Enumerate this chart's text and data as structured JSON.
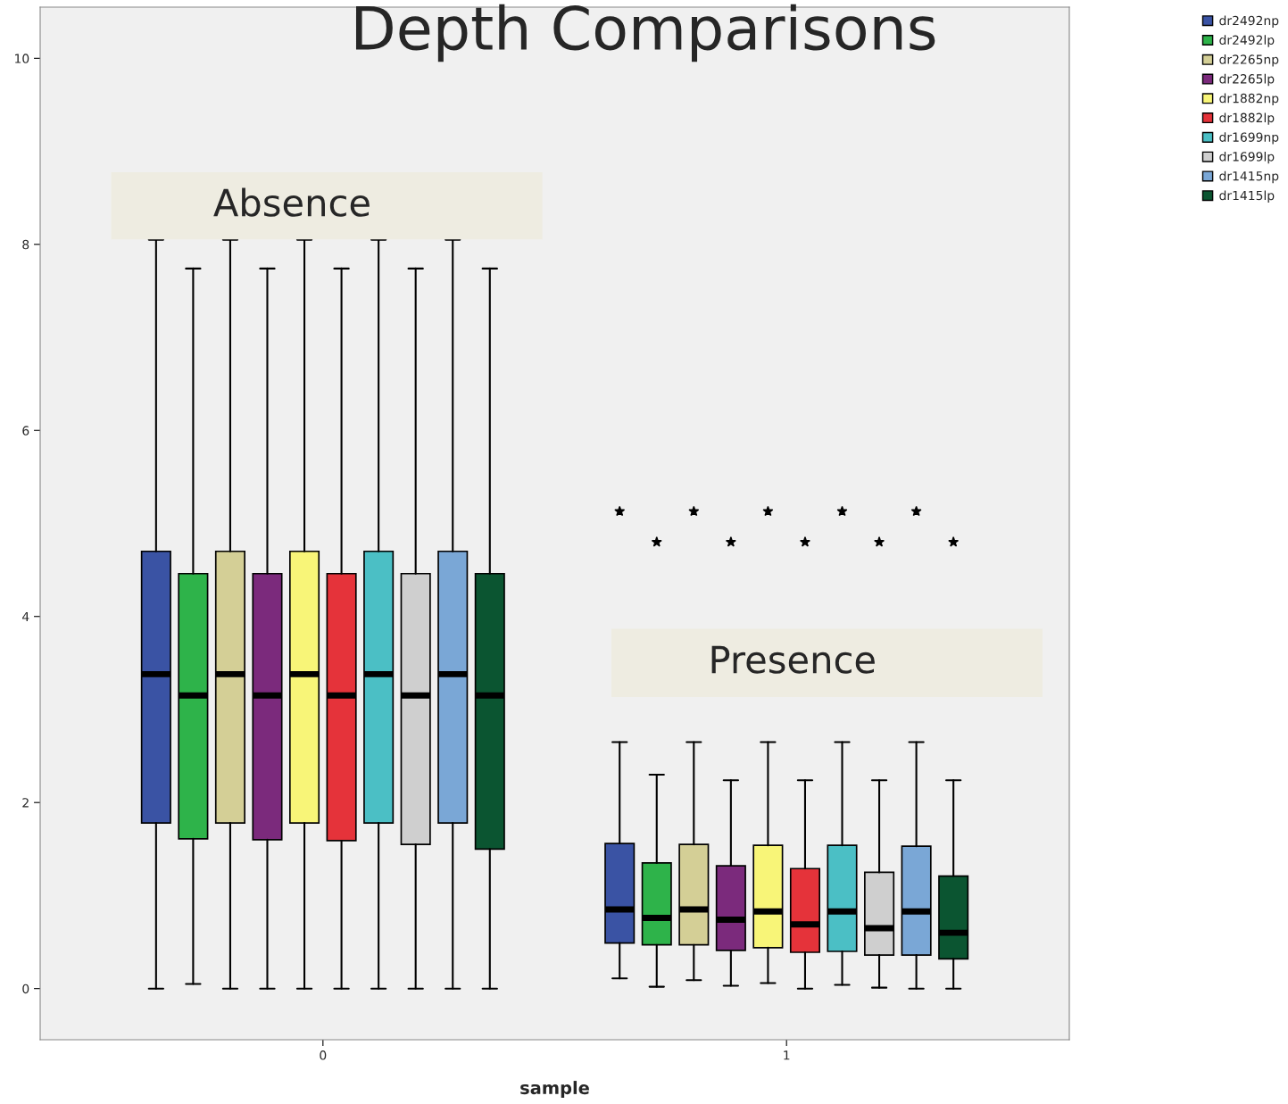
{
  "chart_data": {
    "type": "box",
    "title": "Depth Comparisons",
    "xlabel": "sample",
    "categories": [
      "0",
      "1"
    ],
    "ylim": [
      -0.55,
      10.55
    ],
    "yticks": [
      0,
      2,
      4,
      6,
      8,
      10
    ],
    "grid": false,
    "legend": "top right",
    "annotations": [
      "Absence",
      "Presence"
    ],
    "series": [
      {
        "name": "dr2492np",
        "color": "#3a53a4",
        "boxes": [
          {
            "low": 0,
            "q1": 1.78,
            "median": 3.38,
            "q3": 4.7,
            "high": 8.05
          },
          {
            "low": 0.11,
            "q1": 0.49,
            "median": 0.85,
            "q3": 1.56,
            "high": 2.65,
            "outliers": [
              5.13
            ]
          }
        ]
      },
      {
        "name": "dr2492lp",
        "color": "#2eb34a",
        "boxes": [
          {
            "low": 0.05,
            "q1": 1.61,
            "median": 3.15,
            "q3": 4.46,
            "high": 7.74
          },
          {
            "low": 0.02,
            "q1": 0.47,
            "median": 0.76,
            "q3": 1.35,
            "high": 2.3,
            "outliers": [
              4.8
            ]
          }
        ]
      },
      {
        "name": "dr2265np",
        "color": "#d4cf96",
        "boxes": [
          {
            "low": 0,
            "q1": 1.78,
            "median": 3.38,
            "q3": 4.7,
            "high": 8.05
          },
          {
            "low": 0.09,
            "q1": 0.47,
            "median": 0.85,
            "q3": 1.55,
            "high": 2.65,
            "outliers": [
              5.13
            ]
          }
        ]
      },
      {
        "name": "dr2265lp",
        "color": "#7b2a7c",
        "boxes": [
          {
            "low": 0,
            "q1": 1.6,
            "median": 3.15,
            "q3": 4.46,
            "high": 7.74
          },
          {
            "low": 0.03,
            "q1": 0.41,
            "median": 0.74,
            "q3": 1.32,
            "high": 2.24,
            "outliers": [
              4.8
            ]
          }
        ]
      },
      {
        "name": "dr1882np",
        "color": "#f8f578",
        "boxes": [
          {
            "low": 0,
            "q1": 1.78,
            "median": 3.38,
            "q3": 4.7,
            "high": 8.05
          },
          {
            "low": 0.06,
            "q1": 0.44,
            "median": 0.83,
            "q3": 1.54,
            "high": 2.65,
            "outliers": [
              5.13
            ]
          }
        ]
      },
      {
        "name": "dr1882lp",
        "color": "#e5333a",
        "boxes": [
          {
            "low": 0,
            "q1": 1.59,
            "median": 3.15,
            "q3": 4.46,
            "high": 7.74
          },
          {
            "low": 0,
            "q1": 0.39,
            "median": 0.69,
            "q3": 1.29,
            "high": 2.24,
            "outliers": [
              4.8
            ]
          }
        ]
      },
      {
        "name": "dr1699np",
        "color": "#4bbfc5",
        "boxes": [
          {
            "low": 0,
            "q1": 1.78,
            "median": 3.38,
            "q3": 4.7,
            "high": 8.05
          },
          {
            "low": 0.04,
            "q1": 0.4,
            "median": 0.83,
            "q3": 1.54,
            "high": 2.65,
            "outliers": [
              5.13
            ]
          }
        ]
      },
      {
        "name": "dr1699lp",
        "color": "#cfcfcf",
        "boxes": [
          {
            "low": 0,
            "q1": 1.55,
            "median": 3.15,
            "q3": 4.46,
            "high": 7.74
          },
          {
            "low": 0.01,
            "q1": 0.36,
            "median": 0.65,
            "q3": 1.25,
            "high": 2.24,
            "outliers": [
              4.8
            ]
          }
        ]
      },
      {
        "name": "dr1415np",
        "color": "#7aa7d6",
        "boxes": [
          {
            "low": 0,
            "q1": 1.78,
            "median": 3.38,
            "q3": 4.7,
            "high": 8.05
          },
          {
            "low": 0,
            "q1": 0.36,
            "median": 0.83,
            "q3": 1.53,
            "high": 2.65,
            "outliers": [
              5.13
            ]
          }
        ]
      },
      {
        "name": "dr1415lp",
        "color": "#0b5531",
        "boxes": [
          {
            "low": 0,
            "q1": 1.5,
            "median": 3.15,
            "q3": 4.46,
            "high": 7.74
          },
          {
            "low": 0,
            "q1": 0.32,
            "median": 0.6,
            "q3": 1.21,
            "high": 2.24,
            "outliers": [
              4.8
            ]
          }
        ]
      }
    ]
  }
}
